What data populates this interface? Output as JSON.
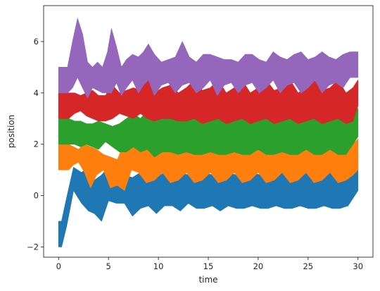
{
  "chart_data": {
    "type": "area",
    "title": "",
    "xlabel": "time",
    "ylabel": "position",
    "xlim": [
      -1.5,
      31.5
    ],
    "ylim": [
      -2.4,
      7.4
    ],
    "x_ticks": [
      0,
      5,
      10,
      15,
      20,
      25,
      30
    ],
    "y_ticks": [
      -2,
      0,
      2,
      4,
      6
    ],
    "x_tick_labels": [
      "0",
      "5",
      "10",
      "15",
      "20",
      "25",
      "30"
    ],
    "y_tick_labels": [
      "−2",
      "0",
      "2",
      "4",
      "6"
    ],
    "grid": false,
    "legend": "none",
    "series": [
      {
        "color": "#1f77b4",
        "x": [
          0,
          0.3,
          0.8,
          1.5,
          2.3,
          3.0,
          3.6,
          4.3,
          5.0,
          5.8,
          6.6,
          7.4,
          8.2,
          9.0,
          9.8,
          10.6,
          11.4,
          12.2,
          13.0,
          13.8,
          14.6,
          15.4,
          16.2,
          17.0,
          17.8,
          18.6,
          19.4,
          20.2,
          21.0,
          21.8,
          22.6,
          23.4,
          24.2,
          25.0,
          25.8,
          26.6,
          27.4,
          28.2,
          29.0,
          30
        ],
        "upper": [
          -1.0,
          -1.0,
          -0.1,
          1.1,
          0.9,
          1.1,
          0.6,
          0.8,
          1.1,
          1.0,
          0.8,
          0.7,
          0.9,
          0.8,
          0.7,
          0.9,
          0.8,
          0.9,
          0.8,
          0.8,
          0.9,
          0.8,
          0.8,
          0.9,
          0.8,
          0.8,
          0.9,
          0.8,
          0.9,
          0.8,
          0.9,
          0.8,
          0.9,
          0.9,
          0.8,
          0.9,
          0.9,
          0.8,
          0.9,
          1.1
        ],
        "lower": [
          -2.0,
          -2.0,
          -1.2,
          0.2,
          -0.3,
          -0.6,
          -0.7,
          -1.0,
          -0.2,
          -0.3,
          -0.3,
          -0.8,
          -0.5,
          -0.4,
          -0.7,
          -0.4,
          -0.4,
          -0.6,
          -0.3,
          -0.5,
          -0.5,
          -0.4,
          -0.6,
          -0.4,
          -0.5,
          -0.5,
          -0.4,
          -0.5,
          -0.5,
          -0.4,
          -0.5,
          -0.5,
          -0.4,
          -0.5,
          -0.5,
          -0.4,
          -0.5,
          -0.5,
          -0.4,
          0.2
        ]
      },
      {
        "color": "#ff7f0e",
        "x": [
          0,
          0.5,
          1.0,
          1.5,
          2.0,
          2.6,
          3.2,
          3.8,
          4.5,
          5.2,
          5.9,
          6.6,
          7.3,
          8.0,
          8.8,
          9.6,
          10.4,
          11.2,
          12.0,
          12.8,
          13.6,
          14.4,
          15.2,
          16.0,
          16.8,
          17.6,
          18.4,
          19.2,
          20.0,
          20.8,
          21.6,
          22.4,
          23.2,
          24.0,
          24.8,
          25.6,
          26.4,
          27.2,
          28.0,
          28.8,
          29.5,
          30
        ],
        "upper": [
          2.0,
          2.0,
          2.0,
          1.9,
          1.8,
          2.0,
          1.9,
          1.8,
          1.6,
          1.5,
          1.4,
          2.1,
          2.0,
          1.9,
          2.2,
          1.9,
          2.0,
          2.3,
          1.9,
          1.9,
          2.3,
          2.0,
          2.0,
          2.3,
          1.9,
          1.9,
          2.3,
          2.0,
          2.0,
          2.3,
          1.9,
          2.0,
          2.3,
          2.0,
          2.1,
          2.2,
          1.9,
          2.0,
          2.3,
          2.0,
          2.0,
          2.2
        ],
        "lower": [
          1.0,
          1.0,
          1.0,
          1.2,
          1.3,
          0.9,
          0.3,
          0.8,
          1.0,
          0.3,
          0.4,
          0.2,
          1.0,
          0.9,
          0.5,
          0.6,
          0.9,
          0.5,
          0.6,
          0.9,
          0.5,
          0.6,
          0.9,
          0.5,
          0.6,
          0.9,
          0.5,
          0.6,
          0.9,
          0.5,
          0.6,
          0.9,
          0.5,
          0.6,
          0.9,
          0.5,
          0.6,
          0.9,
          0.5,
          0.6,
          0.8,
          1.0
        ]
      },
      {
        "color": "#2ca02c",
        "x": [
          0,
          0.5,
          1.0,
          1.6,
          2.2,
          2.8,
          3.4,
          4.0,
          4.7,
          5.4,
          6.1,
          6.8,
          7.5,
          8.2,
          8.9,
          9.6,
          10.4,
          11.2,
          12.0,
          12.8,
          13.6,
          14.4,
          15.2,
          16.0,
          16.8,
          17.6,
          18.4,
          19.2,
          20.0,
          20.8,
          21.6,
          22.4,
          23.2,
          24.0,
          24.8,
          25.6,
          26.4,
          27.2,
          28.0,
          28.8,
          29.5,
          30
        ],
        "upper": [
          3.0,
          3.0,
          3.0,
          2.9,
          2.9,
          2.8,
          2.8,
          2.9,
          2.8,
          2.7,
          2.8,
          3.0,
          3.2,
          3.0,
          3.3,
          3.0,
          3.1,
          3.3,
          3.0,
          3.1,
          3.4,
          3.0,
          3.0,
          3.3,
          3.0,
          3.0,
          3.3,
          3.0,
          3.1,
          3.4,
          3.0,
          3.0,
          3.3,
          3.0,
          3.1,
          3.4,
          3.0,
          3.0,
          3.3,
          3.0,
          3.1,
          3.4
        ],
        "lower": [
          2.0,
          2.0,
          2.0,
          2.0,
          1.9,
          2.0,
          1.9,
          1.8,
          2.1,
          1.9,
          1.7,
          1.7,
          1.9,
          1.7,
          1.8,
          1.5,
          1.7,
          1.7,
          1.6,
          1.7,
          1.6,
          1.6,
          1.7,
          1.6,
          1.6,
          1.7,
          1.6,
          1.6,
          1.8,
          1.6,
          1.6,
          1.7,
          1.6,
          1.6,
          1.8,
          1.6,
          1.6,
          1.8,
          1.6,
          1.6,
          2.0,
          2.3
        ]
      },
      {
        "color": "#d62728",
        "x": [
          0,
          0.5,
          1.0,
          1.6,
          2.2,
          2.8,
          3.4,
          4.0,
          4.7,
          5.4,
          6.1,
          6.8,
          7.5,
          8.2,
          8.9,
          9.6,
          10.4,
          11.2,
          12.0,
          12.8,
          13.6,
          14.4,
          15.2,
          16.0,
          16.8,
          17.6,
          18.4,
          19.2,
          20.0,
          20.8,
          21.6,
          22.4,
          23.2,
          24.0,
          24.8,
          25.6,
          26.4,
          27.2,
          28.0,
          28.8,
          29.5,
          30
        ],
        "upper": [
          4.0,
          4.0,
          4.0,
          4.0,
          3.9,
          4.0,
          4.1,
          3.9,
          3.9,
          4.3,
          4.0,
          4.1,
          4.2,
          4.1,
          4.7,
          4.0,
          4.2,
          4.3,
          4.0,
          4.2,
          4.5,
          4.1,
          4.2,
          4.5,
          4.0,
          4.2,
          4.5,
          4.0,
          4.2,
          4.5,
          4.1,
          4.2,
          4.5,
          4.0,
          4.2,
          4.5,
          4.1,
          4.2,
          4.5,
          4.0,
          4.2,
          4.5
        ],
        "lower": [
          3.0,
          3.0,
          3.0,
          3.2,
          3.3,
          3.1,
          3.0,
          2.9,
          2.9,
          3.0,
          3.2,
          3.1,
          3.0,
          3.2,
          3.0,
          2.9,
          3.0,
          3.0,
          2.9,
          2.9,
          3.0,
          2.8,
          2.9,
          3.0,
          2.8,
          2.9,
          3.0,
          2.8,
          2.9,
          3.0,
          2.8,
          2.9,
          3.0,
          2.8,
          2.9,
          3.0,
          2.8,
          2.9,
          3.0,
          2.8,
          2.9,
          3.5
        ]
      },
      {
        "color": "#9467bd",
        "x": [
          0,
          0.4,
          0.9,
          1.4,
          1.9,
          2.4,
          2.9,
          3.4,
          3.9,
          4.4,
          4.9,
          5.3,
          5.8,
          6.3,
          6.8,
          7.4,
          8.0,
          8.5,
          9.0,
          9.6,
          10.3,
          11.0,
          11.7,
          12.4,
          13.1,
          13.8,
          14.5,
          15.2,
          15.9,
          16.6,
          17.3,
          18.0,
          18.7,
          19.4,
          20.1,
          20.8,
          21.5,
          22.2,
          22.9,
          23.6,
          24.3,
          25.0,
          25.7,
          26.4,
          27.1,
          27.8,
          28.5,
          29.2,
          30
        ],
        "upper": [
          5.0,
          5.0,
          5.0,
          6.0,
          6.9,
          6.3,
          5.2,
          5.0,
          5.2,
          5.0,
          5.6,
          6.5,
          5.8,
          5.0,
          5.3,
          5.5,
          5.4,
          5.6,
          5.9,
          5.5,
          5.2,
          5.3,
          5.4,
          6.0,
          5.4,
          5.2,
          5.5,
          5.5,
          5.4,
          5.3,
          5.3,
          5.2,
          5.5,
          5.5,
          5.3,
          5.2,
          5.6,
          5.4,
          5.3,
          5.5,
          5.6,
          5.3,
          5.4,
          5.6,
          5.4,
          5.3,
          5.5,
          5.6,
          5.6
        ],
        "lower": [
          4.0,
          4.0,
          4.0,
          4.2,
          4.6,
          4.2,
          3.8,
          4.2,
          4.1,
          4.0,
          4.0,
          4.0,
          4.4,
          3.9,
          4.2,
          4.5,
          4.0,
          4.3,
          4.5,
          3.9,
          4.3,
          4.4,
          4.0,
          4.3,
          4.4,
          4.0,
          4.2,
          4.5,
          3.9,
          4.3,
          4.4,
          4.0,
          4.3,
          4.4,
          4.0,
          4.2,
          4.5,
          4.0,
          4.3,
          4.4,
          4.0,
          4.2,
          4.5,
          4.0,
          4.3,
          4.4,
          4.2,
          4.6,
          4.6
        ]
      }
    ]
  }
}
